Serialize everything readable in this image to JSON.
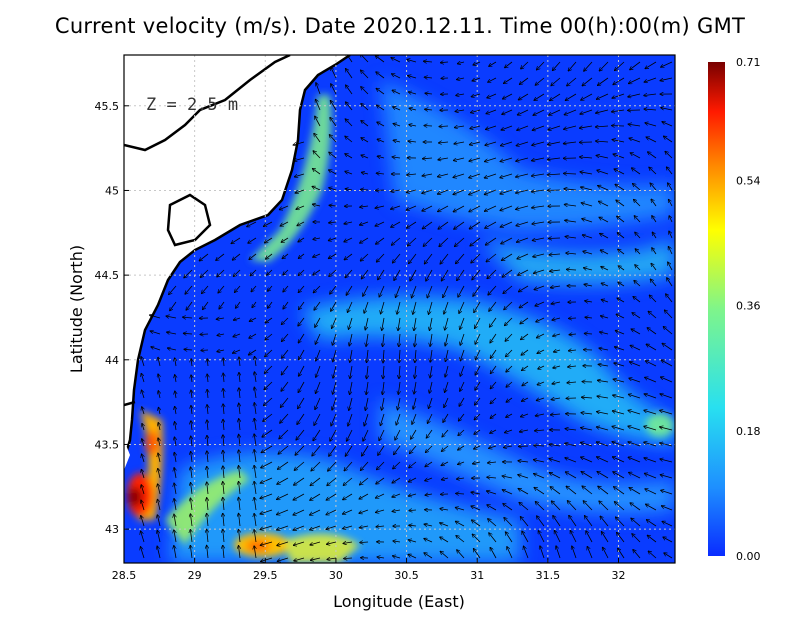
{
  "chart_data": {
    "type": "heatmap",
    "title": "Current velocity (m/s). Date 2020.12.11. Time 00(h):00(m) GMT",
    "xlabel": "Longitude (East)",
    "ylabel": "Latitude (North)",
    "annotation": "Z = 2.5 m",
    "xlim": [
      28.5,
      32.4
    ],
    "ylim": [
      42.8,
      45.8
    ],
    "x_ticks": [
      "28.5",
      "29",
      "29.5",
      "30",
      "30.5",
      "31",
      "31.5",
      "32"
    ],
    "x_tick_values": [
      28.5,
      29,
      29.5,
      30,
      30.5,
      31,
      31.5,
      32
    ],
    "y_ticks": [
      "43",
      "43.5",
      "44",
      "44.5",
      "45",
      "45.5"
    ],
    "y_tick_values": [
      43,
      43.5,
      44,
      44.5,
      45,
      45.5
    ],
    "grid": true,
    "colorbar": {
      "ticks": [
        "0.71",
        "0.54",
        "0.36",
        "0.18",
        "0.00"
      ],
      "tick_values": [
        0.71,
        0.54,
        0.36,
        0.18,
        0.0
      ],
      "range": [
        0.0,
        0.71
      ],
      "colors": [
        "#0a2cff",
        "#1e90ff",
        "#28e0f0",
        "#7ff58a",
        "#ffff00",
        "#ff7f00",
        "#ff1a00",
        "#780000"
      ]
    },
    "features": {
      "high_speed_zones": [
        {
          "lon": 28.6,
          "lat": 43.25,
          "speed": 0.7
        },
        {
          "lon": 28.68,
          "lat": 43.5,
          "speed": 0.55
        },
        {
          "lon": 29.5,
          "lat": 42.92,
          "speed": 0.6
        },
        {
          "lon": 29.8,
          "lat": 44.75,
          "speed": 0.4
        },
        {
          "lon": 29.2,
          "lat": 43.2,
          "speed": 0.35
        }
      ]
    }
  }
}
